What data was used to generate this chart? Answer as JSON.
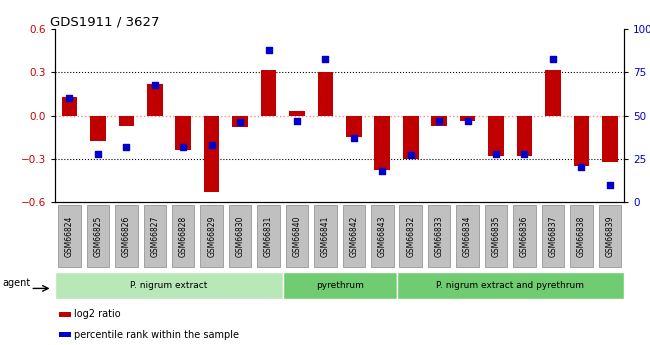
{
  "title": "GDS1911 / 3627",
  "samples": [
    "GSM66824",
    "GSM66825",
    "GSM66826",
    "GSM66827",
    "GSM66828",
    "GSM66829",
    "GSM66830",
    "GSM66831",
    "GSM66840",
    "GSM66841",
    "GSM66842",
    "GSM66843",
    "GSM66832",
    "GSM66833",
    "GSM66834",
    "GSM66835",
    "GSM66836",
    "GSM66837",
    "GSM66838",
    "GSM66839"
  ],
  "log2_ratio": [
    0.13,
    -0.18,
    -0.07,
    0.22,
    -0.24,
    -0.53,
    -0.08,
    0.32,
    0.03,
    0.3,
    -0.15,
    -0.38,
    -0.3,
    -0.07,
    -0.04,
    -0.28,
    -0.28,
    0.32,
    -0.35,
    -0.32
  ],
  "pct_rank": [
    60,
    28,
    32,
    68,
    32,
    33,
    46,
    88,
    47,
    83,
    37,
    18,
    27,
    47,
    47,
    28,
    28,
    83,
    20,
    10
  ],
  "groups": [
    {
      "label": "P. nigrum extract",
      "start": 0,
      "end": 8,
      "color": "#b8e8b8"
    },
    {
      "label": "pyrethrum",
      "start": 8,
      "end": 12,
      "color": "#70cc70"
    },
    {
      "label": "P. nigrum extract and pyrethrum",
      "start": 12,
      "end": 20,
      "color": "#70cc70"
    }
  ],
  "bar_color": "#c00000",
  "dot_color": "#0000cc",
  "zero_line_color": "#ff8888",
  "grid_color": "#000000",
  "ylim_left": [
    -0.6,
    0.6
  ],
  "ylim_right": [
    0,
    100
  ],
  "yticks_left": [
    -0.6,
    -0.3,
    0.0,
    0.3,
    0.6
  ],
  "yticks_right": [
    0,
    25,
    50,
    75,
    100
  ],
  "bg_color": "#ffffff",
  "agent_label": "agent",
  "legend_items": [
    {
      "label": "log2 ratio",
      "color": "#c00000"
    },
    {
      "label": "percentile rank within the sample",
      "color": "#0000cc"
    }
  ],
  "bar_width": 0.55,
  "dot_size": 18,
  "tick_label_color_left": "#cc0000",
  "tick_label_color_right": "#0000cc",
  "sample_box_color": "#c0c0c0",
  "sample_box_edge": "#888888"
}
